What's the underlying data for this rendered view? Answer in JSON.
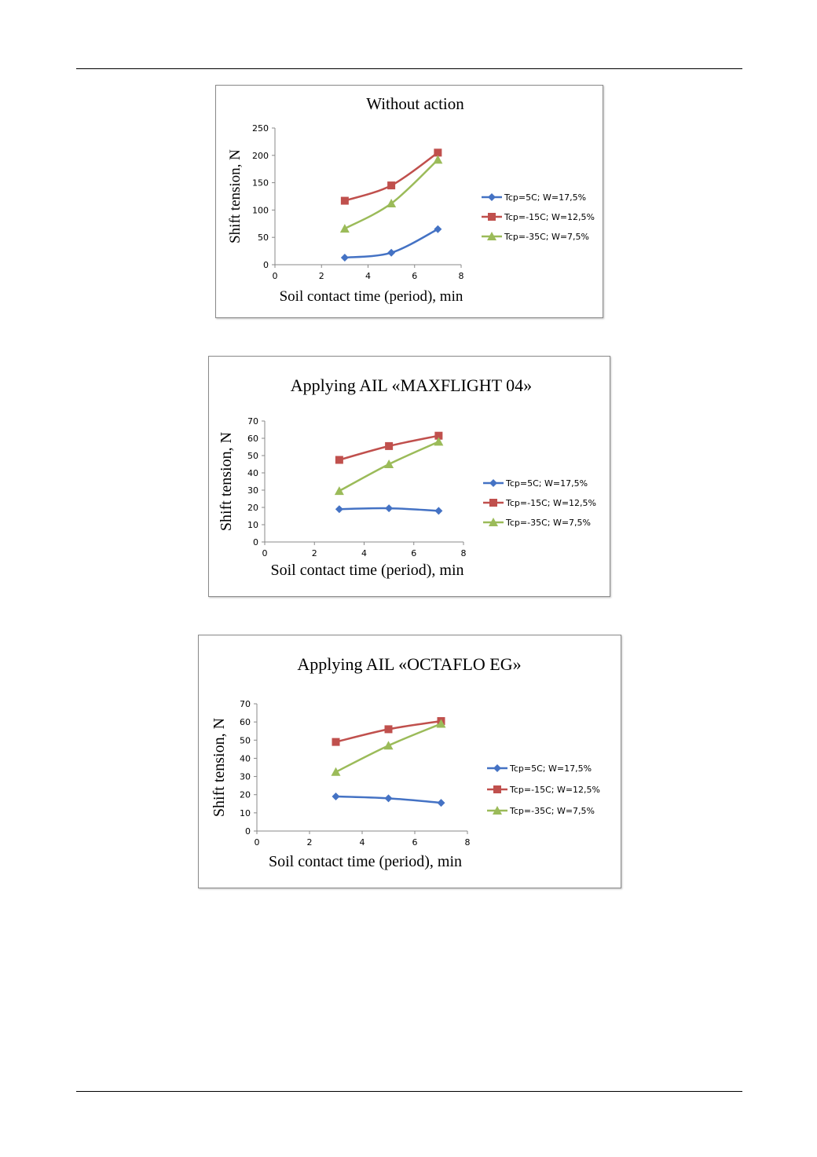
{
  "chart_data": [
    {
      "type": "line",
      "title": "Without action",
      "xlabel": "Soil contact time (period), min",
      "ylabel": "Shift tension, N",
      "xlim": [
        0,
        8
      ],
      "ylim": [
        0,
        250
      ],
      "xticks": [
        0,
        2,
        4,
        6,
        8
      ],
      "yticks": [
        0,
        50,
        100,
        150,
        200,
        250
      ],
      "x": [
        3,
        5,
        7
      ],
      "grid": false,
      "legend_position": "right",
      "series": [
        {
          "name": "Tcp=5C; W=17,5%",
          "values": [
            13,
            22,
            65
          ],
          "color": "#4472c4",
          "marker": "diamond"
        },
        {
          "name": "Tcp=-15C; W=12,5%",
          "values": [
            117,
            145,
            205
          ],
          "color": "#c0504d",
          "marker": "square"
        },
        {
          "name": "Tcp=-35C; W=7,5%",
          "values": [
            66,
            112,
            192
          ],
          "color": "#9bbb59",
          "marker": "triangle"
        }
      ]
    },
    {
      "type": "line",
      "title": "Applying AIL «MAXFLIGHT 04»",
      "xlabel": "Soil contact time (period), min",
      "ylabel": "Shift tension, N",
      "xlim": [
        0,
        8
      ],
      "ylim": [
        0,
        70
      ],
      "xticks": [
        0,
        2,
        4,
        6,
        8
      ],
      "yticks": [
        0,
        10,
        20,
        30,
        40,
        50,
        60,
        70
      ],
      "x": [
        3,
        5,
        7
      ],
      "grid": false,
      "legend_position": "right",
      "series": [
        {
          "name": "Tcp=5C; W=17,5%",
          "values": [
            19,
            19.5,
            18
          ],
          "color": "#4472c4",
          "marker": "diamond"
        },
        {
          "name": "Tcp=-15C; W=12,5%",
          "values": [
            47.5,
            55.5,
            61.5
          ],
          "color": "#c0504d",
          "marker": "square"
        },
        {
          "name": "Tcp=-35C; W=7,5%",
          "values": [
            29.5,
            45,
            58
          ],
          "color": "#9bbb59",
          "marker": "triangle"
        }
      ]
    },
    {
      "type": "line",
      "title": "Applying AIL «OCTAFLO EG»",
      "xlabel": "Soil contact time (period), min",
      "ylabel": "Shift tension, N",
      "xlim": [
        0,
        8
      ],
      "ylim": [
        0,
        70
      ],
      "xticks": [
        0,
        2,
        4,
        6,
        8
      ],
      "yticks": [
        0,
        10,
        20,
        30,
        40,
        50,
        60,
        70
      ],
      "x": [
        3,
        5,
        7
      ],
      "grid": false,
      "legend_position": "right",
      "series": [
        {
          "name": "Tcp=5C; W=17,5%",
          "values": [
            19,
            18,
            15.5
          ],
          "color": "#4472c4",
          "marker": "diamond"
        },
        {
          "name": "Tcp=-15C; W=12,5%",
          "values": [
            49,
            56,
            60.5
          ],
          "color": "#c0504d",
          "marker": "square"
        },
        {
          "name": "Tcp=-35C; W=7,5%",
          "values": [
            32.5,
            47,
            59
          ],
          "color": "#9bbb59",
          "marker": "triangle"
        }
      ]
    }
  ]
}
